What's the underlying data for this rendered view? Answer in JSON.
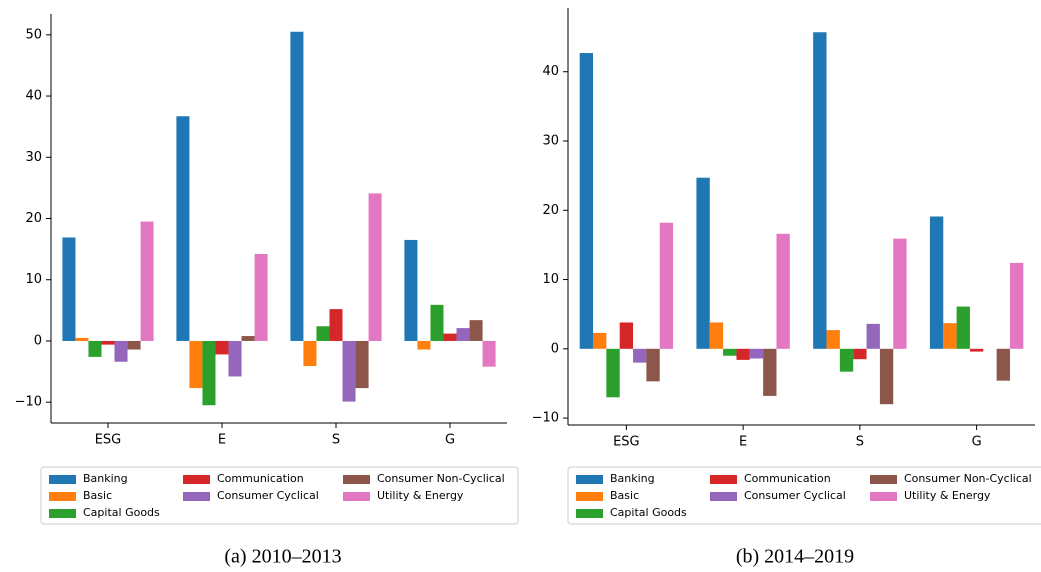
{
  "chart_data": [
    {
      "type": "bar",
      "caption": "(a) 2010–2013",
      "categories": [
        "ESG",
        "E",
        "S",
        "G"
      ],
      "series": [
        {
          "name": "Banking",
          "color": "#1f77b4",
          "values": [
            16.9,
            36.7,
            50.5,
            16.5
          ]
        },
        {
          "name": "Basic",
          "color": "#ff7f0e",
          "values": [
            0.5,
            -7.7,
            -4.1,
            -1.4
          ]
        },
        {
          "name": "Capital Goods",
          "color": "#2ca02c",
          "values": [
            -2.6,
            -10.5,
            2.4,
            5.9
          ]
        },
        {
          "name": "Communication",
          "color": "#d62728",
          "values": [
            -0.6,
            -2.2,
            5.2,
            1.2
          ]
        },
        {
          "name": "Consumer Cyclical",
          "color": "#9467bd",
          "values": [
            -3.4,
            -5.8,
            -9.9,
            2.1
          ]
        },
        {
          "name": "Consumer Non-Cyclical",
          "color": "#8c564b",
          "values": [
            -1.4,
            0.8,
            -7.7,
            3.4
          ]
        },
        {
          "name": "Utility & Energy",
          "color": "#e377c2",
          "values": [
            19.5,
            14.2,
            24.1,
            -4.2
          ]
        }
      ],
      "ylim": [
        -13.4,
        53.4
      ],
      "yticks": [
        {
          "value": -10,
          "label": "−10"
        },
        0,
        10,
        20,
        30,
        40,
        50
      ]
    },
    {
      "type": "bar",
      "caption": "(b) 2014–2019",
      "categories": [
        "ESG",
        "E",
        "S",
        "G"
      ],
      "series": [
        {
          "name": "Banking",
          "color": "#1f77b4",
          "values": [
            42.7,
            24.7,
            45.7,
            19.1
          ]
        },
        {
          "name": "Basic",
          "color": "#ff7f0e",
          "values": [
            2.3,
            3.8,
            2.7,
            3.7
          ]
        },
        {
          "name": "Capital Goods",
          "color": "#2ca02c",
          "values": [
            -7.0,
            -1.0,
            -3.3,
            6.1
          ]
        },
        {
          "name": "Communication",
          "color": "#d62728",
          "values": [
            3.8,
            -1.6,
            -1.5,
            -0.4
          ]
        },
        {
          "name": "Consumer Cyclical",
          "color": "#9467bd",
          "values": [
            -2.0,
            -1.4,
            3.6,
            0
          ]
        },
        {
          "name": "Consumer Non-Cyclical",
          "color": "#8c564b",
          "values": [
            -4.7,
            -6.8,
            -8.0,
            -4.6
          ]
        },
        {
          "name": "Utility & Energy",
          "color": "#e377c2",
          "values": [
            18.2,
            16.6,
            15.9,
            12.4
          ]
        }
      ],
      "ylim": [
        -11,
        49.2
      ],
      "yticks": [
        {
          "value": -10,
          "label": "−10"
        },
        0,
        10,
        20,
        30,
        40
      ]
    }
  ]
}
